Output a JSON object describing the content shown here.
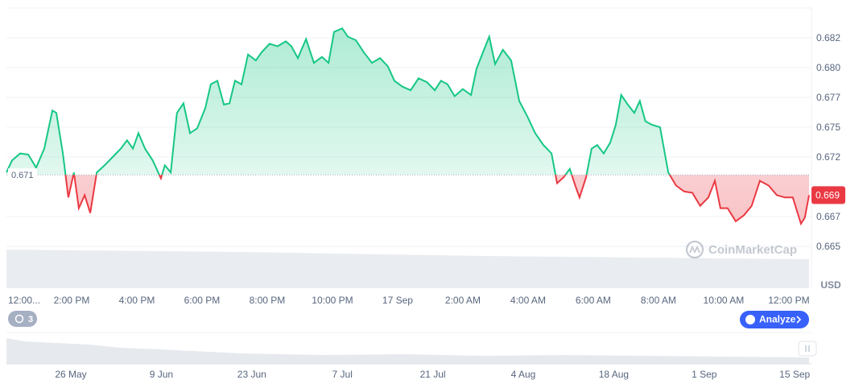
{
  "chart_data": {
    "type": "line",
    "color": "#16c784",
    "negative_color": "#ea3943",
    "baseline": 0.671,
    "current_price": {
      "value": 0.6693,
      "label": "0.669"
    },
    "x": [
      0,
      0.17,
      0.42,
      0.67,
      0.91,
      1.16,
      1.41,
      1.53,
      1.73,
      1.9,
      2.07,
      2.22,
      2.4,
      2.57,
      2.77,
      3.01,
      3.26,
      3.51,
      3.7,
      3.88,
      4.05,
      4.25,
      4.49,
      4.74,
      4.86,
      5.04,
      5.23,
      5.43,
      5.63,
      5.85,
      6.1,
      6.27,
      6.47,
      6.67,
      6.84,
      7.01,
      7.21,
      7.41,
      7.65,
      7.83,
      8.07,
      8.32,
      8.57,
      8.74,
      8.94,
      9.19,
      9.43,
      9.68,
      9.88,
      10.05,
      10.3,
      10.47,
      10.72,
      10.96,
      11.21,
      11.46,
      11.7,
      11.9,
      12.15,
      12.4,
      12.64,
      12.89,
      13.14,
      13.33,
      13.53,
      13.75,
      14,
      14.25,
      14.42,
      14.62,
      14.81,
      14.99,
      15.23,
      15.48,
      15.73,
      15.98,
      16.22,
      16.47,
      16.72,
      16.89,
      17.09,
      17.28,
      17.46,
      17.58,
      17.78,
      17.95,
      18.12,
      18.32,
      18.52,
      18.69,
      18.86,
      19.06,
      19.26,
      19.43,
      19.6,
      19.8,
      20.05,
      20.3,
      20.54,
      20.79,
      21.04,
      21.28,
      21.53,
      21.73,
      21.9,
      22.12,
      22.37,
      22.62,
      22.86,
      23.11,
      23.38,
      23.63,
      23.88,
      24.12,
      24.37,
      24.49,
      24.62
    ],
    "values": [
      0.6712,
      0.6722,
      0.6728,
      0.6727,
      0.6716,
      0.6732,
      0.6764,
      0.6762,
      0.6728,
      0.6691,
      0.6712,
      0.6682,
      0.6693,
      0.6678,
      0.6712,
      0.6718,
      0.6725,
      0.6732,
      0.6739,
      0.6732,
      0.6745,
      0.6732,
      0.6722,
      0.6707,
      0.6718,
      0.6712,
      0.6762,
      0.677,
      0.6745,
      0.6749,
      0.6766,
      0.6786,
      0.6789,
      0.6769,
      0.677,
      0.6789,
      0.6786,
      0.6811,
      0.6806,
      0.6813,
      0.682,
      0.6818,
      0.6822,
      0.6818,
      0.6808,
      0.6824,
      0.6804,
      0.6809,
      0.6804,
      0.683,
      0.6833,
      0.6826,
      0.6823,
      0.6813,
      0.6804,
      0.6808,
      0.6801,
      0.6789,
      0.6784,
      0.6781,
      0.6791,
      0.6788,
      0.6781,
      0.6789,
      0.6786,
      0.6776,
      0.6782,
      0.6777,
      0.6799,
      0.6813,
      0.6826,
      0.6803,
      0.6815,
      0.6806,
      0.6772,
      0.6759,
      0.6745,
      0.6735,
      0.6728,
      0.6703,
      0.6708,
      0.6715,
      0.67,
      0.6691,
      0.6708,
      0.6732,
      0.6735,
      0.6728,
      0.6737,
      0.6752,
      0.6777,
      0.6769,
      0.6762,
      0.6772,
      0.6755,
      0.6752,
      0.675,
      0.6712,
      0.6701,
      0.6696,
      0.6695,
      0.6684,
      0.6691,
      0.6705,
      0.6682,
      0.6682,
      0.6671,
      0.6676,
      0.6684,
      0.6705,
      0.6701,
      0.6693,
      0.6691,
      0.6691,
      0.6669,
      0.6674,
      0.6693
    ],
    "xlim": [
      0,
      24.62
    ],
    "ylim": [
      0.665,
      0.685
    ],
    "xticks": [
      {
        "value": 0,
        "label": "12:00..."
      },
      {
        "value": 2,
        "label": "2:00 PM"
      },
      {
        "value": 4,
        "label": "4:00 PM"
      },
      {
        "value": 6,
        "label": "6:00 PM"
      },
      {
        "value": 8,
        "label": "8:00 PM"
      },
      {
        "value": 10,
        "label": "10:00 PM"
      },
      {
        "value": 12,
        "label": "17 Sep"
      },
      {
        "value": 14,
        "label": "2:00 AM"
      },
      {
        "value": 16,
        "label": "4:00 AM"
      },
      {
        "value": 18,
        "label": "6:00 AM"
      },
      {
        "value": 20,
        "label": "8:00 AM"
      },
      {
        "value": 22,
        "label": "10:00 AM"
      },
      {
        "value": 24,
        "label": "12:00 PM"
      }
    ],
    "yticks": [
      {
        "value": 0.6825,
        "label": "0.682"
      },
      {
        "value": 0.68,
        "label": "0.680"
      },
      {
        "value": 0.6775,
        "label": "0.677"
      },
      0.675,
      {
        "value": 0.6725,
        "label": "0.672"
      },
      {
        "value": 0.6675,
        "label": "0.667"
      },
      0.665
    ],
    "grid": true
  },
  "ui": {
    "currency": "USD",
    "watermark": "CoinMarketCap",
    "badge": "3",
    "analyze_button": "Analyze",
    "navigator_labels": [
      "26 May",
      "9 Jun",
      "23 Jun",
      "7 Jul",
      "21 Jul",
      "4 Aug",
      "18 Aug",
      "1 Sep",
      "15 Sep"
    ]
  }
}
